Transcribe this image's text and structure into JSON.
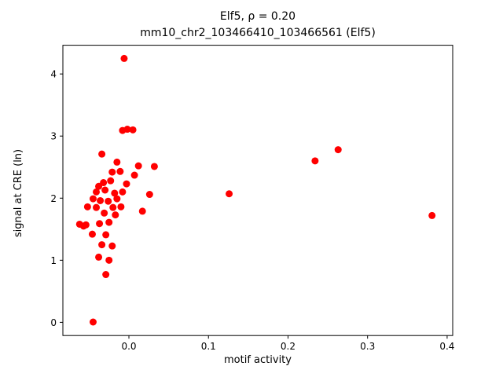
{
  "chart_data": {
    "type": "scatter",
    "title_line1": "Elf5, ρ = 0.20",
    "title_line2": "mm10_chr2_103466410_103466561 (Elf5)",
    "xlabel": "motif activity",
    "ylabel": "signal at CRE (ln)",
    "marker_color": "#ff0000",
    "xlim": [
      -0.083,
      0.407
    ],
    "ylim": [
      -0.2125,
      4.4625
    ],
    "xticks": [
      {
        "value": 0.0,
        "label": "0.0"
      },
      {
        "value": 0.1,
        "label": "0.1"
      },
      {
        "value": 0.2,
        "label": "0.2"
      },
      {
        "value": 0.3,
        "label": "0.3"
      },
      {
        "value": 0.4,
        "label": "0.4"
      }
    ],
    "yticks": [
      {
        "value": 0,
        "label": "0"
      },
      {
        "value": 1,
        "label": "1"
      },
      {
        "value": 2,
        "label": "2"
      },
      {
        "value": 3,
        "label": "3"
      },
      {
        "value": 4,
        "label": "4"
      }
    ],
    "legend": null,
    "grid": false,
    "points": [
      [
        -0.006,
        4.25
      ],
      [
        -0.008,
        3.09
      ],
      [
        -0.002,
        3.11
      ],
      [
        0.005,
        3.1
      ],
      [
        -0.034,
        2.71
      ],
      [
        0.263,
        2.78
      ],
      [
        0.234,
        2.6
      ],
      [
        -0.015,
        2.58
      ],
      [
        -0.021,
        2.42
      ],
      [
        -0.011,
        2.43
      ],
      [
        0.012,
        2.52
      ],
      [
        0.032,
        2.51
      ],
      [
        0.007,
        2.37
      ],
      [
        -0.032,
        2.25
      ],
      [
        -0.023,
        2.28
      ],
      [
        -0.038,
        2.19
      ],
      [
        -0.003,
        2.23
      ],
      [
        -0.041,
        2.1
      ],
      [
        -0.03,
        2.13
      ],
      [
        -0.018,
        2.08
      ],
      [
        -0.008,
        2.1
      ],
      [
        0.026,
        2.06
      ],
      [
        0.126,
        2.07
      ],
      [
        -0.045,
        1.99
      ],
      [
        -0.036,
        1.96
      ],
      [
        -0.026,
        1.95
      ],
      [
        -0.015,
        1.99
      ],
      [
        -0.052,
        1.86
      ],
      [
        -0.041,
        1.85
      ],
      [
        -0.02,
        1.85
      ],
      [
        -0.01,
        1.86
      ],
      [
        -0.031,
        1.76
      ],
      [
        -0.017,
        1.73
      ],
      [
        0.017,
        1.79
      ],
      [
        0.381,
        1.72
      ],
      [
        -0.062,
        1.58
      ],
      [
        -0.057,
        1.55
      ],
      [
        -0.054,
        1.57
      ],
      [
        -0.037,
        1.59
      ],
      [
        -0.025,
        1.61
      ],
      [
        -0.046,
        1.42
      ],
      [
        -0.029,
        1.41
      ],
      [
        -0.034,
        1.25
      ],
      [
        -0.021,
        1.23
      ],
      [
        -0.038,
        1.05
      ],
      [
        -0.025,
        1.0
      ],
      [
        -0.029,
        0.77
      ],
      [
        -0.045,
        0.005
      ]
    ]
  }
}
